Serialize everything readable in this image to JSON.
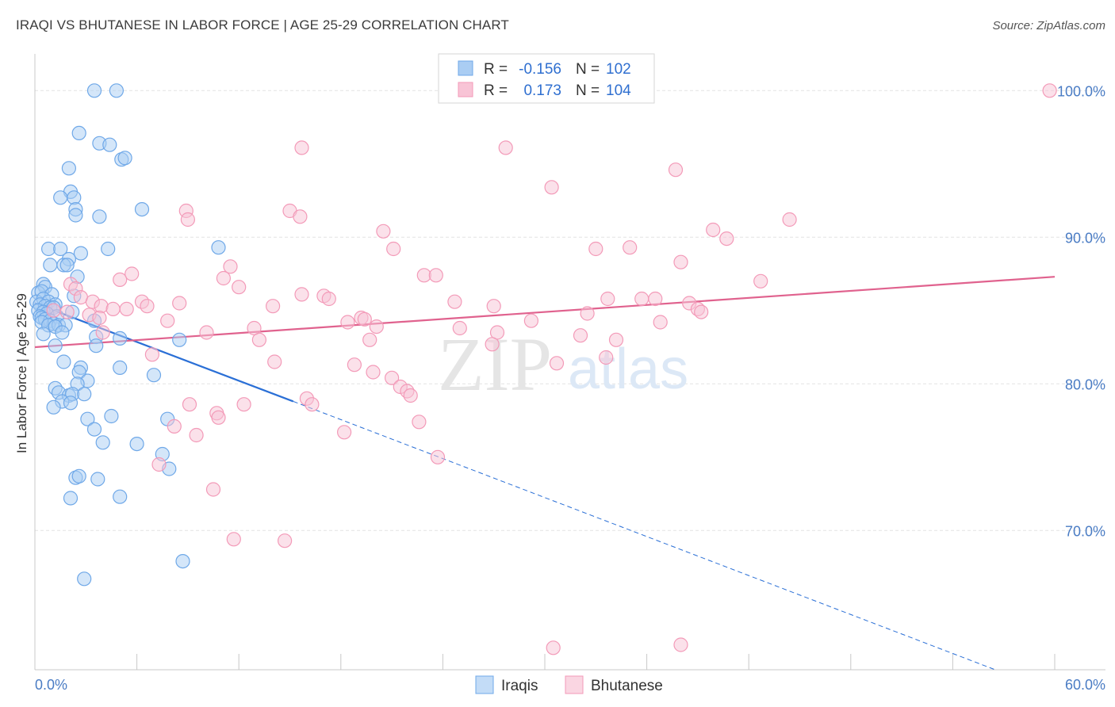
{
  "title": "IRAQI VS BHUTANESE IN LABOR FORCE | AGE 25-29 CORRELATION CHART",
  "source": "Source: ZipAtlas.com",
  "watermark": {
    "zip": "ZIP",
    "atlas": "atlas"
  },
  "chart_data": {
    "type": "scatter",
    "xlabel": "",
    "ylabel": "In Labor Force | Age 25-29",
    "xlim": [
      0,
      60
    ],
    "ylim": [
      60.5,
      102.5
    ],
    "x_tick_labels": [
      {
        "value": 0,
        "label": "0.0%"
      },
      {
        "value": 60,
        "label": "60.0%"
      }
    ],
    "y_tick_labels": [
      {
        "value": 100,
        "label": "100.0%"
      },
      {
        "value": 90,
        "label": "90.0%"
      },
      {
        "value": 80,
        "label": "80.0%"
      },
      {
        "value": 70,
        "label": "70.0%"
      }
    ],
    "grid": true,
    "legend_position": "top-center",
    "stats": [
      {
        "r_label": "R =",
        "r_value": "-0.156",
        "n_label": "N =",
        "n_value": "102",
        "color": "#6fa8e8"
      },
      {
        "r_label": "R =",
        "r_value": "0.173",
        "n_label": "N =",
        "n_value": "104",
        "color": "#f39ab8"
      }
    ],
    "series": [
      {
        "name": "Iraqis",
        "color": "#6fa8e8",
        "fill": "#aacdf3",
        "trend": {
          "x": [
            0,
            15.2
          ],
          "y": [
            85.5,
            78.8
          ],
          "color": "#2a6fd6"
        },
        "trend_ext": {
          "x": [
            15.2,
            56.5
          ],
          "y": [
            78.8,
            60.5
          ]
        },
        "points": [
          [
            3.5,
            100
          ],
          [
            4.8,
            100
          ],
          [
            2.6,
            97.1
          ],
          [
            3.8,
            96.4
          ],
          [
            4.4,
            96.3
          ],
          [
            5.1,
            95.3
          ],
          [
            5.3,
            95.4
          ],
          [
            2.0,
            94.7
          ],
          [
            2.1,
            93.1
          ],
          [
            1.5,
            92.7
          ],
          [
            2.3,
            92.7
          ],
          [
            2.4,
            91.9
          ],
          [
            2.4,
            91.5
          ],
          [
            3.8,
            91.4
          ],
          [
            6.3,
            91.9
          ],
          [
            0.8,
            89.2
          ],
          [
            1.5,
            89.2
          ],
          [
            2.7,
            88.9
          ],
          [
            4.3,
            89.2
          ],
          [
            10.8,
            89.3
          ],
          [
            2.0,
            88.5
          ],
          [
            0.9,
            88.1
          ],
          [
            1.7,
            88.1
          ],
          [
            1.9,
            88.1
          ],
          [
            2.5,
            87.3
          ],
          [
            0.5,
            86.8
          ],
          [
            0.6,
            86.6
          ],
          [
            0.2,
            86.2
          ],
          [
            0.4,
            86.3
          ],
          [
            1.0,
            86.1
          ],
          [
            2.3,
            86.0
          ],
          [
            0.1,
            85.6
          ],
          [
            0.5,
            85.8
          ],
          [
            0.8,
            85.6
          ],
          [
            1.2,
            85.4
          ],
          [
            0.3,
            85.4
          ],
          [
            0.6,
            85.3
          ],
          [
            0.9,
            85.2
          ],
          [
            1.1,
            85.2
          ],
          [
            0.2,
            85.0
          ],
          [
            0.5,
            84.9
          ],
          [
            0.7,
            84.8
          ],
          [
            1.3,
            84.6
          ],
          [
            2.2,
            84.9
          ],
          [
            0.3,
            84.6
          ],
          [
            0.4,
            84.5
          ],
          [
            0.6,
            84.4
          ],
          [
            0.9,
            84.3
          ],
          [
            1.1,
            84.1
          ],
          [
            0.4,
            84.2
          ],
          [
            0.8,
            84.0
          ],
          [
            1.4,
            84.0
          ],
          [
            1.8,
            84.0
          ],
          [
            1.2,
            83.9
          ],
          [
            3.5,
            84.3
          ],
          [
            0.5,
            83.4
          ],
          [
            1.6,
            83.5
          ],
          [
            3.6,
            83.2
          ],
          [
            5.0,
            83.1
          ],
          [
            8.5,
            83.0
          ],
          [
            1.2,
            82.6
          ],
          [
            3.6,
            82.6
          ],
          [
            1.7,
            81.5
          ],
          [
            2.7,
            81.1
          ],
          [
            5.0,
            81.1
          ],
          [
            2.6,
            80.8
          ],
          [
            7.0,
            80.6
          ],
          [
            3.1,
            80.2
          ],
          [
            2.5,
            80.0
          ],
          [
            1.2,
            79.7
          ],
          [
            1.4,
            79.4
          ],
          [
            2.0,
            79.2
          ],
          [
            2.2,
            79.3
          ],
          [
            2.9,
            79.3
          ],
          [
            1.6,
            78.8
          ],
          [
            2.1,
            78.7
          ],
          [
            1.1,
            78.4
          ],
          [
            4.5,
            77.8
          ],
          [
            3.1,
            77.6
          ],
          [
            7.8,
            77.6
          ],
          [
            3.5,
            76.9
          ],
          [
            4.0,
            76.0
          ],
          [
            6.0,
            75.9
          ],
          [
            7.5,
            75.2
          ],
          [
            7.9,
            74.2
          ],
          [
            2.4,
            73.6
          ],
          [
            2.6,
            73.7
          ],
          [
            3.7,
            73.5
          ],
          [
            2.1,
            72.2
          ],
          [
            5.0,
            72.3
          ],
          [
            8.7,
            67.9
          ],
          [
            2.9,
            66.7
          ]
        ]
      },
      {
        "name": "Bhutanese",
        "color": "#f39ab8",
        "fill": "#f8c4d6",
        "trend": {
          "x": [
            0,
            60
          ],
          "y": [
            82.5,
            87.3
          ],
          "color": "#e0628e"
        },
        "points": [
          [
            59.7,
            100
          ],
          [
            15.7,
            96.1
          ],
          [
            27.7,
            96.1
          ],
          [
            37.7,
            94.6
          ],
          [
            30.4,
            93.4
          ],
          [
            15.0,
            91.8
          ],
          [
            15.6,
            91.4
          ],
          [
            8.9,
            91.8
          ],
          [
            9.0,
            91.2
          ],
          [
            44.4,
            91.2
          ],
          [
            20.5,
            90.4
          ],
          [
            39.9,
            90.5
          ],
          [
            40.7,
            89.9
          ],
          [
            33.0,
            89.2
          ],
          [
            35.0,
            89.3
          ],
          [
            21.1,
            89.2
          ],
          [
            38.0,
            88.3
          ],
          [
            11.5,
            88.0
          ],
          [
            5.7,
            87.5
          ],
          [
            22.9,
            87.4
          ],
          [
            23.6,
            87.4
          ],
          [
            5.0,
            87.1
          ],
          [
            11.1,
            87.2
          ],
          [
            42.7,
            87.0
          ],
          [
            2.1,
            86.8
          ],
          [
            12.0,
            86.6
          ],
          [
            2.4,
            86.5
          ],
          [
            15.7,
            86.1
          ],
          [
            17.0,
            86.0
          ],
          [
            17.3,
            85.8
          ],
          [
            2.7,
            85.9
          ],
          [
            33.7,
            85.8
          ],
          [
            35.7,
            85.8
          ],
          [
            36.5,
            85.8
          ],
          [
            3.4,
            85.6
          ],
          [
            24.7,
            85.6
          ],
          [
            6.3,
            85.6
          ],
          [
            8.5,
            85.5
          ],
          [
            14.0,
            85.3
          ],
          [
            27.0,
            85.3
          ],
          [
            38.5,
            85.5
          ],
          [
            39.0,
            85.1
          ],
          [
            3.9,
            85.3
          ],
          [
            4.6,
            85.1
          ],
          [
            6.6,
            85.3
          ],
          [
            5.4,
            85.1
          ],
          [
            39.2,
            84.9
          ],
          [
            1.1,
            85.0
          ],
          [
            1.9,
            84.9
          ],
          [
            32.5,
            84.8
          ],
          [
            3.2,
            84.7
          ],
          [
            3.8,
            84.5
          ],
          [
            19.2,
            84.5
          ],
          [
            19.4,
            84.4
          ],
          [
            18.4,
            84.2
          ],
          [
            7.8,
            84.3
          ],
          [
            29.2,
            84.3
          ],
          [
            36.8,
            84.2
          ],
          [
            25.0,
            83.8
          ],
          [
            20.1,
            83.9
          ],
          [
            12.9,
            83.8
          ],
          [
            10.1,
            83.5
          ],
          [
            4.0,
            83.5
          ],
          [
            32.1,
            83.3
          ],
          [
            34.2,
            83.0
          ],
          [
            27.2,
            83.5
          ],
          [
            13.2,
            83.0
          ],
          [
            19.7,
            83.0
          ],
          [
            26.9,
            82.7
          ],
          [
            6.9,
            82.0
          ],
          [
            33.6,
            81.8
          ],
          [
            14.1,
            81.5
          ],
          [
            18.8,
            81.3
          ],
          [
            30.7,
            81.4
          ],
          [
            19.9,
            80.8
          ],
          [
            21.0,
            80.4
          ],
          [
            21.5,
            79.8
          ],
          [
            21.9,
            79.5
          ],
          [
            22.1,
            79.2
          ],
          [
            16.0,
            79.0
          ],
          [
            16.3,
            78.6
          ],
          [
            9.1,
            78.6
          ],
          [
            12.3,
            78.6
          ],
          [
            10.7,
            78.0
          ],
          [
            10.8,
            77.7
          ],
          [
            8.2,
            77.1
          ],
          [
            22.6,
            77.4
          ],
          [
            9.5,
            76.5
          ],
          [
            18.2,
            76.7
          ],
          [
            23.7,
            75.0
          ],
          [
            7.3,
            74.5
          ],
          [
            10.5,
            72.8
          ],
          [
            11.7,
            69.4
          ],
          [
            14.7,
            69.3
          ],
          [
            30.5,
            62.0
          ],
          [
            38.0,
            62.2
          ]
        ]
      }
    ]
  }
}
